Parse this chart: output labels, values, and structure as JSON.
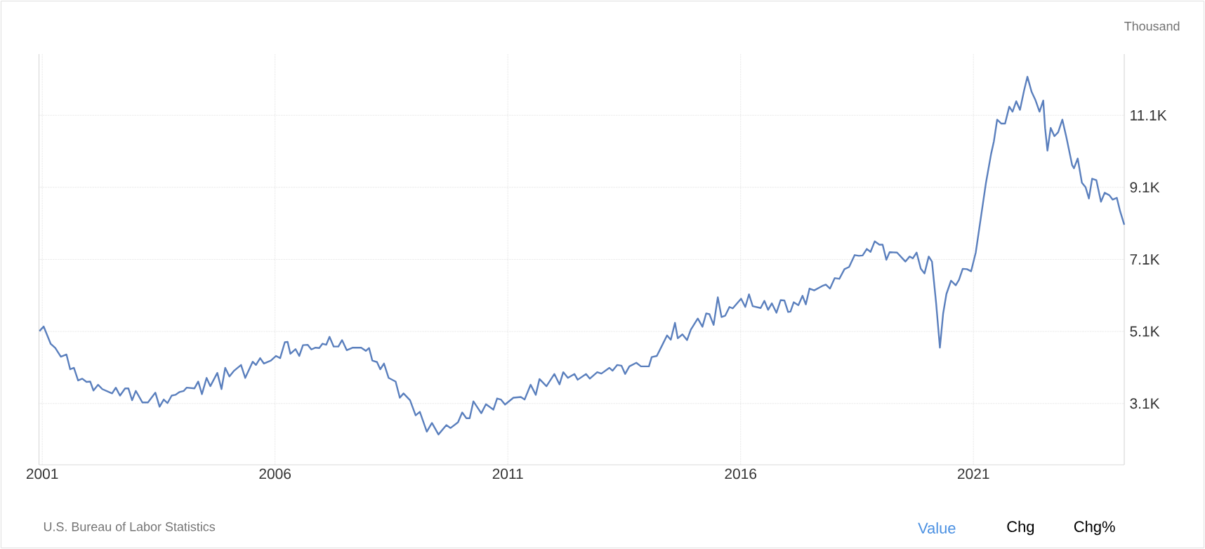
{
  "chart_data": {
    "type": "line",
    "ylabel": "Thousand",
    "annotations": [
      "U.S. Bureau of Labor Statistics",
      "Value",
      "Chg",
      "Chg%"
    ],
    "xlim": [
      2000.93,
      2024.24
    ],
    "xticks": [
      2001,
      2006,
      2011,
      2016,
      2021
    ],
    "ylim": [
      1.4,
      12.8
    ],
    "yticks": [
      {
        "value": 3.1,
        "label": "3.1K"
      },
      {
        "value": 5.1,
        "label": "5.1K"
      },
      {
        "value": 7.1,
        "label": "7.1K"
      },
      {
        "value": 9.1,
        "label": "9.1K"
      },
      {
        "value": 11.1,
        "label": "11.1K"
      }
    ],
    "grid": true,
    "marker": "none",
    "line_style": "solid",
    "series": [
      {
        "color": "#5a7fbd",
        "x": [
          2000.94,
          2001.03,
          2001.18,
          2001.28,
          2001.4,
          2001.52,
          2001.6,
          2001.68,
          2001.77,
          2001.86,
          2001.95,
          2002.03,
          2002.1,
          2002.2,
          2002.29,
          2002.5,
          2002.58,
          2002.67,
          2002.78,
          2002.85,
          2002.93,
          2003.01,
          2003.15,
          2003.27,
          2003.43,
          2003.52,
          2003.61,
          2003.69,
          2003.78,
          2003.86,
          2003.95,
          2004.04,
          2004.1,
          2004.27,
          2004.35,
          2004.43,
          2004.53,
          2004.61,
          2004.76,
          2004.85,
          2004.93,
          2005.02,
          2005.12,
          2005.27,
          2005.36,
          2005.52,
          2005.59,
          2005.68,
          2005.76,
          2005.91,
          2006.02,
          2006.11,
          2006.21,
          2006.27,
          2006.33,
          2006.44,
          2006.52,
          2006.6,
          2006.7,
          2006.78,
          2006.87,
          2006.95,
          2007.02,
          2007.1,
          2007.17,
          2007.26,
          2007.36,
          2007.44,
          2007.54,
          2007.67,
          2007.85,
          2007.95,
          2008.02,
          2008.09,
          2008.19,
          2008.26,
          2008.34,
          2008.44,
          2008.59,
          2008.68,
          2008.76,
          2008.9,
          2009.02,
          2009.11,
          2009.26,
          2009.37,
          2009.51,
          2009.68,
          2009.77,
          2009.93,
          2010.02,
          2010.11,
          2010.18,
          2010.26,
          2010.43,
          2010.53,
          2010.69,
          2010.77,
          2010.85,
          2010.94,
          2011.12,
          2011.28,
          2011.36,
          2011.49,
          2011.6,
          2011.68,
          2011.83,
          2012.0,
          2012.11,
          2012.19,
          2012.29,
          2012.43,
          2012.5,
          2012.68,
          2012.76,
          2012.92,
          2013.01,
          2013.18,
          2013.25,
          2013.35,
          2013.44,
          2013.52,
          2013.61,
          2013.76,
          2013.86,
          2014.03,
          2014.09,
          2014.2,
          2014.32,
          2014.42,
          2014.5,
          2014.59,
          2014.65,
          2014.75,
          2014.85,
          2014.93,
          2015.08,
          2015.18,
          2015.26,
          2015.33,
          2015.42,
          2015.51,
          2015.59,
          2015.67,
          2015.76,
          2015.83,
          2016.01,
          2016.1,
          2016.18,
          2016.26,
          2016.43,
          2016.51,
          2016.59,
          2016.67,
          2016.77,
          2016.86,
          2016.94,
          2017.02,
          2017.07,
          2017.14,
          2017.24,
          2017.33,
          2017.4,
          2017.48,
          2017.58,
          2017.75,
          2017.83,
          2017.92,
          2018.02,
          2018.12,
          2018.23,
          2018.33,
          2018.45,
          2018.54,
          2018.62,
          2018.71,
          2018.79,
          2018.88,
          2018.98,
          2019.05,
          2019.13,
          2019.2,
          2019.36,
          2019.54,
          2019.63,
          2019.7,
          2019.78,
          2019.87,
          2019.95,
          2020.04,
          2020.11,
          2020.2,
          2020.28,
          2020.35,
          2020.42,
          2020.52,
          2020.62,
          2020.69,
          2020.77,
          2020.86,
          2020.95,
          2021.05,
          2021.17,
          2021.27,
          2021.38,
          2021.44,
          2021.51,
          2021.6,
          2021.68,
          2021.77,
          2021.84,
          2021.92,
          2022.0,
          2022.09,
          2022.16,
          2022.25,
          2022.33,
          2022.42,
          2022.5,
          2022.54,
          2022.59,
          2022.66,
          2022.74,
          2022.82,
          2022.91,
          2023.0,
          2023.12,
          2023.16,
          2023.24,
          2023.33,
          2023.41,
          2023.48,
          2023.55,
          2023.64,
          2023.74,
          2023.82,
          2023.92,
          2023.99,
          2024.08,
          2024.15,
          2024.24
        ],
        "values": [
          5.11,
          5.24,
          4.76,
          4.64,
          4.4,
          4.46,
          4.05,
          4.09,
          3.74,
          3.79,
          3.7,
          3.71,
          3.46,
          3.62,
          3.5,
          3.38,
          3.54,
          3.32,
          3.52,
          3.52,
          3.19,
          3.45,
          3.13,
          3.13,
          3.4,
          3.01,
          3.21,
          3.11,
          3.32,
          3.34,
          3.42,
          3.45,
          3.54,
          3.52,
          3.71,
          3.36,
          3.81,
          3.58,
          3.95,
          3.5,
          4.09,
          3.85,
          4.01,
          4.17,
          3.81,
          4.26,
          4.17,
          4.36,
          4.21,
          4.29,
          4.42,
          4.36,
          4.8,
          4.81,
          4.48,
          4.61,
          4.42,
          4.72,
          4.73,
          4.6,
          4.65,
          4.64,
          4.76,
          4.73,
          4.95,
          4.68,
          4.68,
          4.86,
          4.58,
          4.65,
          4.65,
          4.56,
          4.64,
          4.29,
          4.25,
          4.05,
          4.21,
          3.81,
          3.71,
          3.26,
          3.38,
          3.19,
          2.77,
          2.87,
          2.32,
          2.56,
          2.24,
          2.5,
          2.42,
          2.58,
          2.85,
          2.69,
          2.69,
          3.16,
          2.83,
          3.08,
          2.93,
          3.24,
          3.21,
          3.07,
          3.26,
          3.28,
          3.21,
          3.62,
          3.34,
          3.78,
          3.58,
          3.92,
          3.63,
          3.97,
          3.81,
          3.92,
          3.76,
          3.92,
          3.79,
          3.97,
          3.93,
          4.09,
          4.01,
          4.17,
          4.15,
          3.92,
          4.13,
          4.23,
          4.13,
          4.13,
          4.39,
          4.42,
          4.73,
          4.99,
          4.87,
          5.34,
          4.91,
          5.02,
          4.86,
          5.15,
          5.46,
          5.23,
          5.6,
          5.58,
          5.28,
          6.05,
          5.5,
          5.54,
          5.78,
          5.74,
          6.01,
          5.78,
          6.13,
          5.8,
          5.75,
          5.95,
          5.7,
          5.88,
          5.62,
          5.97,
          5.96,
          5.64,
          5.65,
          5.91,
          5.83,
          6.09,
          5.85,
          6.29,
          6.24,
          6.36,
          6.4,
          6.29,
          6.58,
          6.56,
          6.83,
          6.89,
          7.22,
          7.2,
          7.21,
          7.39,
          7.31,
          7.6,
          7.51,
          7.51,
          7.09,
          7.3,
          7.29,
          7.04,
          7.18,
          7.13,
          7.29,
          6.84,
          6.71,
          7.18,
          7.04,
          5.87,
          4.65,
          5.6,
          6.14,
          6.51,
          6.38,
          6.53,
          6.84,
          6.83,
          6.77,
          7.29,
          8.35,
          9.23,
          10.03,
          10.38,
          10.98,
          10.87,
          10.87,
          11.34,
          11.2,
          11.49,
          11.25,
          11.8,
          12.17,
          11.75,
          11.53,
          11.2,
          11.51,
          10.74,
          10.12,
          10.75,
          10.52,
          10.63,
          10.98,
          10.47,
          9.72,
          9.63,
          9.9,
          9.23,
          9.1,
          8.79,
          9.34,
          9.3,
          8.7,
          8.95,
          8.88,
          8.76,
          8.81,
          8.44,
          8.06
        ]
      }
    ]
  }
}
